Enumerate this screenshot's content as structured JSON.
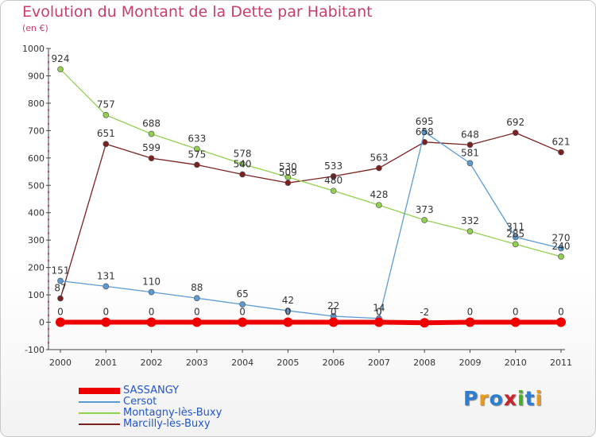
{
  "title": "Evolution du Montant de la Dette par Habitant",
  "unit": "(en €)",
  "logo": {
    "text": "Proxiti",
    "colors": [
      "#2a7fd4",
      "#e89a1e",
      "#2a7fd4",
      "#c8232c",
      "#4caf2a",
      "#2a7fd4",
      "#e89a1e"
    ]
  },
  "chart_data": {
    "type": "line",
    "x": [
      "2000",
      "2001",
      "2002",
      "2003",
      "2004",
      "2005",
      "2006",
      "2007",
      "2008",
      "2009",
      "2010",
      "2011"
    ],
    "ylim": [
      -100,
      1000
    ],
    "yticks": [
      -100,
      0,
      100,
      200,
      300,
      400,
      500,
      600,
      700,
      800,
      900,
      1000
    ],
    "grid": false,
    "legend_position": "bottom-left",
    "series": [
      {
        "name": "SASSANGY",
        "color": "#ee0000",
        "width": 6,
        "marker": 6,
        "values": [
          0,
          0,
          0,
          0,
          0,
          0,
          0,
          0,
          -2,
          0,
          0,
          0
        ],
        "labels": [
          "0",
          "0",
          "0",
          "0",
          "0",
          "0",
          "0",
          "0",
          "-2",
          "0",
          "0",
          "0"
        ]
      },
      {
        "name": "Cersot",
        "color": "#5b9bd5",
        "width": 1.3,
        "marker": 3.5,
        "values": [
          151,
          131,
          110,
          88,
          65,
          42,
          22,
          14,
          695,
          581,
          311,
          270
        ],
        "labels": [
          "151",
          "131",
          "110",
          "88",
          "65",
          "42",
          "22",
          "14",
          "695",
          "581",
          "311",
          "270"
        ]
      },
      {
        "name": "Montagny-lès-Buxy",
        "color": "#92d050",
        "width": 1.3,
        "marker": 3.5,
        "values": [
          924,
          757,
          688,
          633,
          578,
          530,
          480,
          428,
          373,
          332,
          285,
          240
        ],
        "labels": [
          "924",
          "757",
          "688",
          "633",
          "578",
          "530",
          "480",
          "428",
          "373",
          "332",
          "285",
          "240"
        ]
      },
      {
        "name": "Marcilly-lès-Buxy",
        "color": "#7b2020",
        "width": 1.3,
        "marker": 3.5,
        "values": [
          87,
          651,
          599,
          575,
          540,
          509,
          533,
          563,
          658,
          648,
          692,
          621
        ],
        "labels": [
          "87",
          "651",
          "599",
          "575",
          "540",
          "509",
          "533",
          "563",
          "658",
          "648",
          "692",
          "621"
        ]
      }
    ]
  }
}
